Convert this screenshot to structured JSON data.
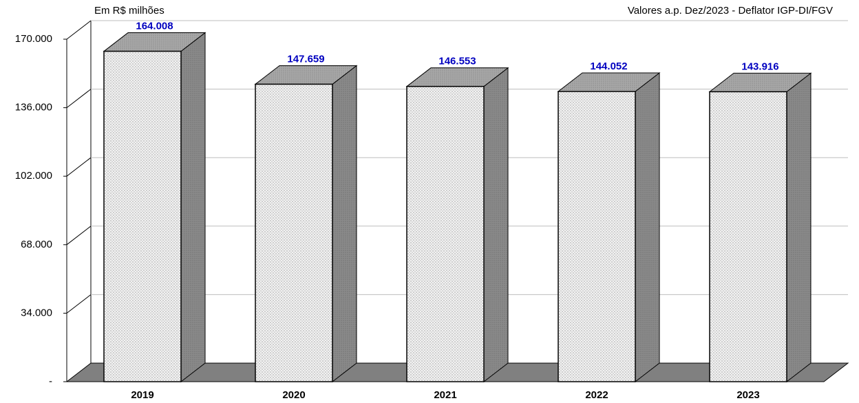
{
  "chart_data": {
    "type": "bar3d",
    "subtitle_left": "Em R$ milhões",
    "subtitle_right": "Valores a.p. Dez/2023 - Deflator IGP-DI/FGV",
    "categories": [
      "2019",
      "2020",
      "2021",
      "2022",
      "2023"
    ],
    "values": [
      164008,
      147659,
      146553,
      144052,
      143916
    ],
    "value_labels": [
      "164.008",
      "147.659",
      "146.553",
      "144.052",
      "143.916"
    ],
    "ylim": [
      0,
      170000
    ],
    "yticks": [
      {
        "value": 0,
        "label": "-"
      },
      {
        "value": 34000,
        "label": "34.000"
      },
      {
        "value": 68000,
        "label": "68.000"
      },
      {
        "value": 102000,
        "label": "102.000"
      },
      {
        "value": 136000,
        "label": "136.000"
      },
      {
        "value": 170000,
        "label": "170.000"
      }
    ],
    "grid": true,
    "color": "#e6e6e6",
    "label_color": "#0000c0"
  }
}
